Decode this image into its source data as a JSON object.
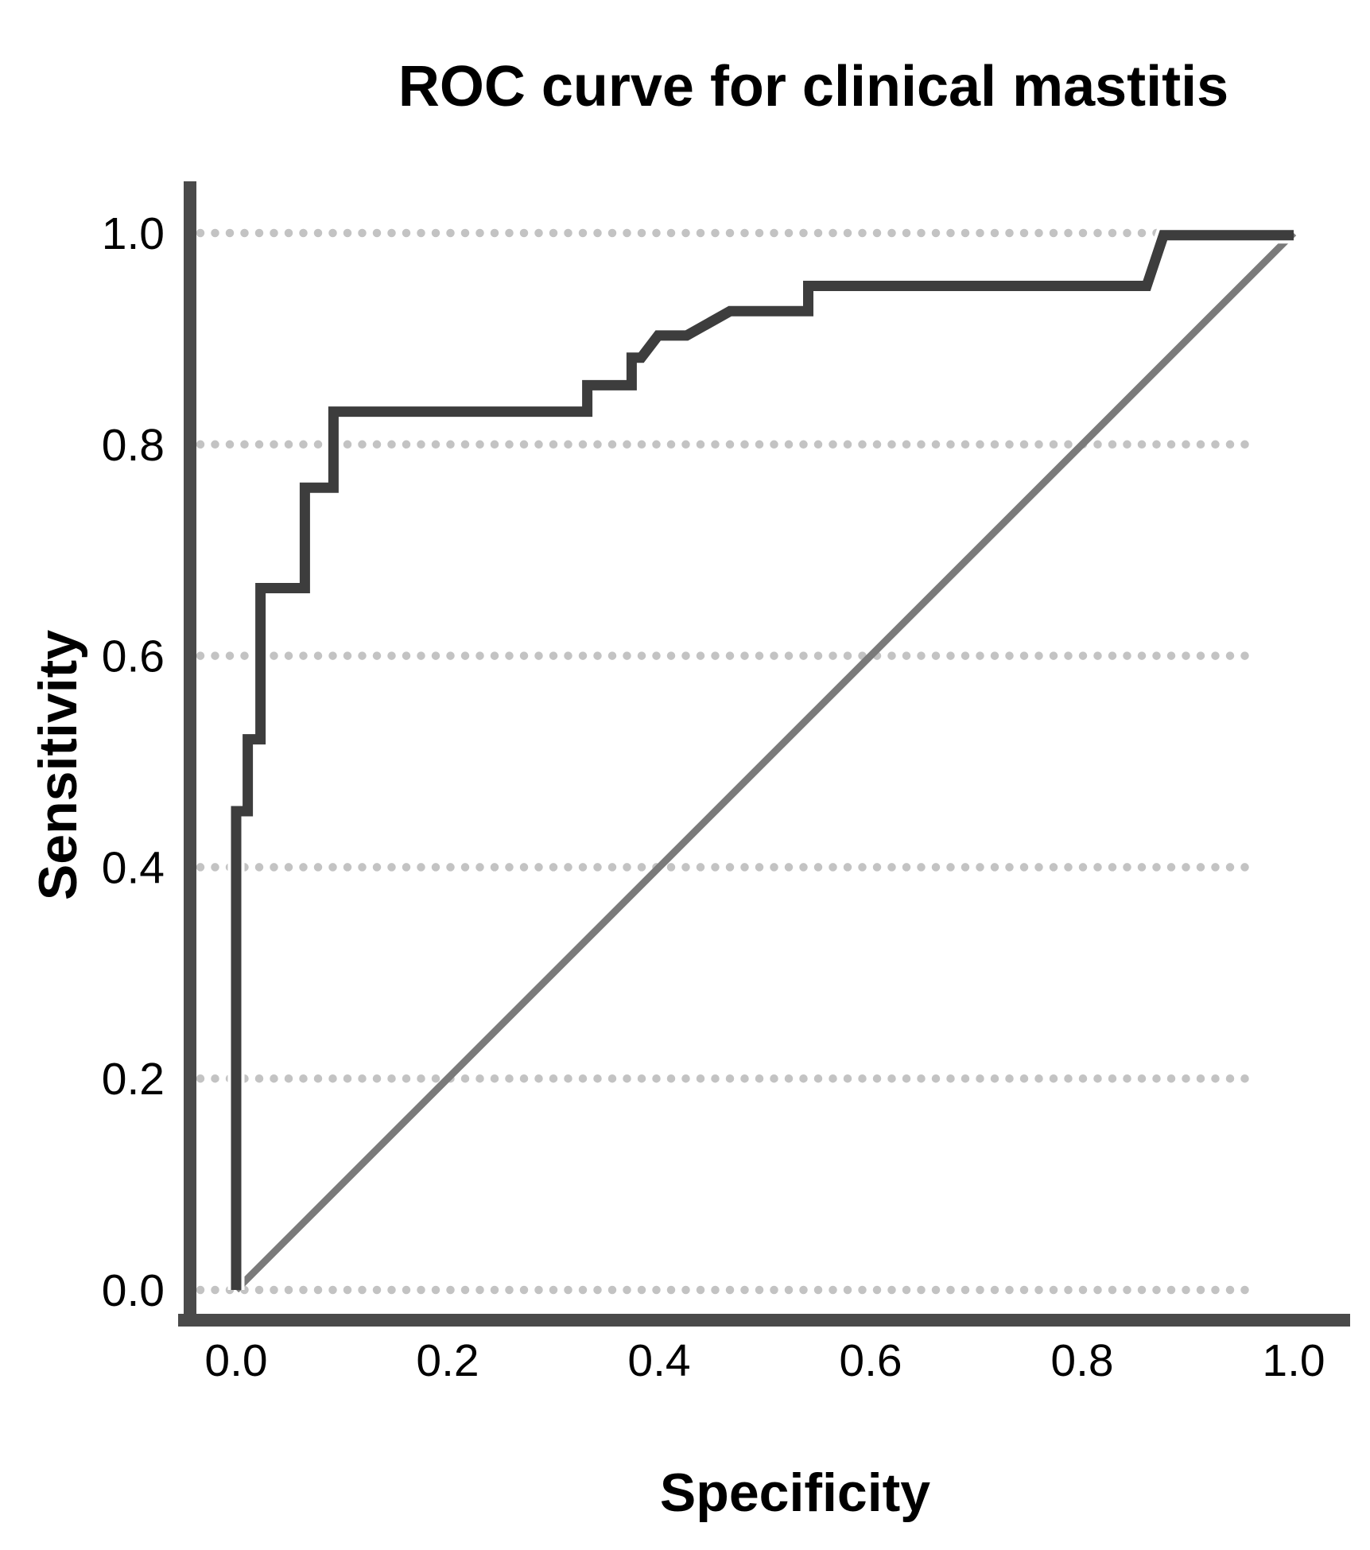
{
  "chart_data": {
    "type": "line",
    "title": "ROC curve for clinical mastitis",
    "xlabel": "Specificity",
    "ylabel": "Sensitivity",
    "xlim": [
      0.0,
      1.0
    ],
    "ylim": [
      0.0,
      1.0
    ],
    "x_ticks": [
      "0.0",
      "0.2",
      "0.4",
      "0.6",
      "0.8",
      "1.0"
    ],
    "y_ticks": [
      "0.0",
      "0.2",
      "0.4",
      "0.6",
      "0.8",
      "1.0"
    ],
    "grid": "horizontal-dotted",
    "legend": "none",
    "colors": {
      "background": "#ffffff",
      "axis": "#4a4a4a",
      "gridline": "#c3c3c3",
      "text": "#000000",
      "roc_curve": "#3d3d3d",
      "reference_line": "#7a7a7a"
    },
    "series": [
      {
        "name": "ROC curve",
        "color": "#3d3d3d",
        "stroke_width": 13,
        "casing": true,
        "points": [
          [
            0.0,
            0.0
          ],
          [
            0.0,
            0.453
          ],
          [
            0.011,
            0.453
          ],
          [
            0.011,
            0.521
          ],
          [
            0.023,
            0.521
          ],
          [
            0.023,
            0.664
          ],
          [
            0.065,
            0.664
          ],
          [
            0.065,
            0.759
          ],
          [
            0.092,
            0.759
          ],
          [
            0.092,
            0.831
          ],
          [
            0.332,
            0.831
          ],
          [
            0.332,
            0.856
          ],
          [
            0.374,
            0.856
          ],
          [
            0.374,
            0.882
          ],
          [
            0.383,
            0.882
          ],
          [
            0.399,
            0.903
          ],
          [
            0.426,
            0.903
          ],
          [
            0.467,
            0.926
          ],
          [
            0.541,
            0.926
          ],
          [
            0.541,
            0.95
          ],
          [
            0.861,
            0.95
          ],
          [
            0.877,
            0.998
          ],
          [
            1.0,
            0.998
          ]
        ]
      },
      {
        "name": "Reference diagonal",
        "color": "#7a7a7a",
        "stroke_width": 9,
        "casing": false,
        "points": [
          [
            0.0,
            0.0
          ],
          [
            1.0,
            1.0
          ]
        ]
      }
    ]
  }
}
